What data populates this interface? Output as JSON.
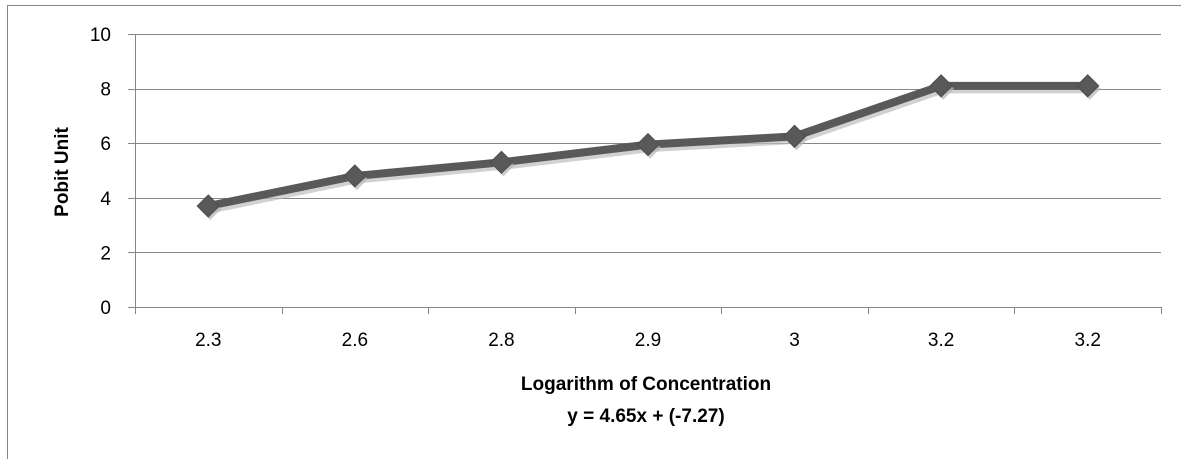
{
  "chart_data": {
    "type": "line",
    "categories": [
      "2.3",
      "2.6",
      "2.8",
      "2.9",
      "3",
      "3.2",
      "3.2"
    ],
    "series": [
      {
        "values": [
          3.7,
          4.8,
          5.3,
          5.95,
          6.25,
          8.1,
          8.1
        ]
      }
    ],
    "xlabel": "Logarithm of Concentration",
    "ylabel": "Pobit Unit",
    "equation": "y = 4.65x + (-7.27)",
    "ylim": [
      0,
      10
    ],
    "yticks": [
      "0",
      "2",
      "4",
      "6",
      "8",
      "10"
    ],
    "grid": true,
    "marker": "diamond",
    "colors": {
      "series": "#595959",
      "grid": "#868686",
      "axis": "#868686",
      "frame": "#868686"
    }
  }
}
